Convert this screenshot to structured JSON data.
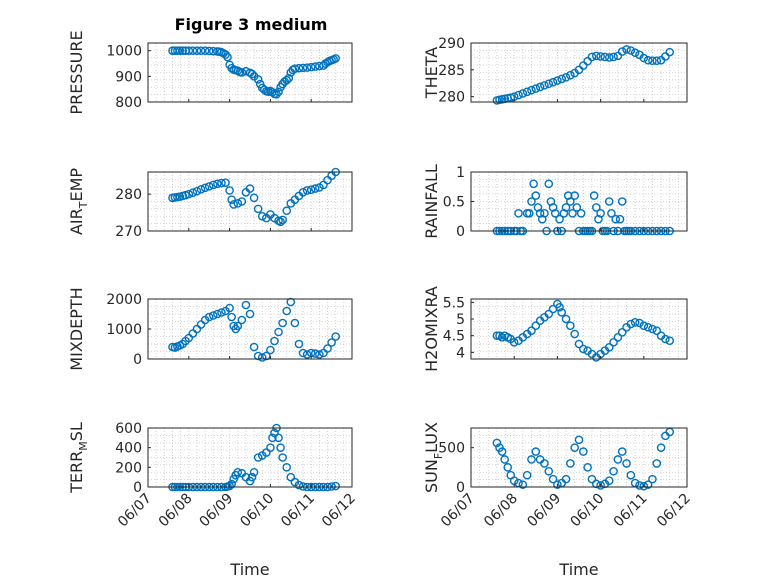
{
  "figure": {
    "title": "Figure 3 medium",
    "marker_color": "#0072BD"
  },
  "chart_data": [
    {
      "type": "scatter",
      "ylabel": "PRESSURE",
      "yticks": [
        "800",
        "900",
        "1000"
      ],
      "ylim": [
        800,
        1030
      ],
      "x_dates": [
        "06/07",
        "06/08",
        "06/09",
        "06/10",
        "06/11",
        "06/12"
      ],
      "series": [
        {
          "x": [
            0.6,
            0.66,
            0.72,
            0.78,
            0.85,
            0.92,
            1.0,
            1.1,
            1.2,
            1.3,
            1.4,
            1.5,
            1.6,
            1.7,
            1.75,
            1.8,
            1.85,
            1.9,
            1.95,
            2.0,
            2.05,
            2.1,
            2.15,
            2.2,
            2.25,
            2.3,
            2.4,
            2.5,
            2.55,
            2.6,
            2.7,
            2.75,
            2.8,
            2.85,
            2.9,
            2.95,
            3.0,
            3.05,
            3.1,
            3.15,
            3.2,
            3.25,
            3.3,
            3.35,
            3.4,
            3.45,
            3.5,
            3.55,
            3.6,
            3.7,
            3.8,
            3.9,
            4.0,
            4.1,
            4.2,
            4.3,
            4.35,
            4.4,
            4.45,
            4.5,
            4.55,
            4.6
          ],
          "y": [
            1000,
            1000,
            1000,
            1000,
            1000,
            1000,
            1000,
            1000,
            1000,
            1000,
            1000,
            999,
            998,
            997,
            996,
            994,
            990,
            985,
            975,
            945,
            932,
            926,
            924,
            922,
            917,
            915,
            920,
            914,
            909,
            900,
            888,
            870,
            855,
            848,
            842,
            840,
            843,
            838,
            832,
            830,
            840,
            858,
            870,
            880,
            885,
            893,
            915,
            925,
            930,
            932,
            933,
            934,
            936,
            938,
            940,
            942,
            950,
            955,
            960,
            963,
            966,
            970
          ]
        }
      ],
      "xlabel": ""
    },
    {
      "type": "scatter",
      "ylabel": "THETA",
      "yticks": [
        "280",
        "285",
        "290"
      ],
      "ylim": [
        279,
        290
      ],
      "x_dates": [
        "06/07",
        "06/08",
        "06/09",
        "06/10",
        "06/11",
        "06/12"
      ],
      "series": [
        {
          "x": [
            0.6,
            0.66,
            0.72,
            0.78,
            0.85,
            0.92,
            1.0,
            1.1,
            1.2,
            1.3,
            1.4,
            1.5,
            1.6,
            1.7,
            1.8,
            1.9,
            2.0,
            2.1,
            2.2,
            2.3,
            2.4,
            2.5,
            2.6,
            2.7,
            2.8,
            2.9,
            3.0,
            3.1,
            3.2,
            3.3,
            3.4,
            3.5,
            3.6,
            3.7,
            3.8,
            3.9,
            4.0,
            4.1,
            4.2,
            4.3,
            4.4,
            4.5,
            4.6
          ],
          "y": [
            279.3,
            279.4,
            279.5,
            279.6,
            279.7,
            279.8,
            280.0,
            280.3,
            280.6,
            280.9,
            281.2,
            281.5,
            281.8,
            282.1,
            282.4,
            282.7,
            283.0,
            283.3,
            283.6,
            284.0,
            284.4,
            285.0,
            285.8,
            286.6,
            287.4,
            287.6,
            287.5,
            287.4,
            287.3,
            287.4,
            287.6,
            288.4,
            288.8,
            288.6,
            288.2,
            287.8,
            287.2,
            286.8,
            286.7,
            286.7,
            286.8,
            287.5,
            288.3
          ]
        }
      ],
      "xlabel": ""
    },
    {
      "type": "scatter",
      "ylabel": "AIR_TEMP",
      "yticks": [
        "270",
        "280"
      ],
      "ylim": [
        270,
        286
      ],
      "x_dates": [
        "06/07",
        "06/08",
        "06/09",
        "06/10",
        "06/11",
        "06/12"
      ],
      "series": [
        {
          "x": [
            0.6,
            0.66,
            0.72,
            0.78,
            0.85,
            0.92,
            1.0,
            1.1,
            1.2,
            1.3,
            1.4,
            1.5,
            1.6,
            1.7,
            1.8,
            1.9,
            2.0,
            2.05,
            2.1,
            2.2,
            2.3,
            2.4,
            2.5,
            2.6,
            2.7,
            2.8,
            2.9,
            3.0,
            3.1,
            3.2,
            3.25,
            3.3,
            3.4,
            3.5,
            3.6,
            3.7,
            3.8,
            3.9,
            4.0,
            4.1,
            4.2,
            4.3,
            4.4,
            4.5,
            4.6
          ],
          "y": [
            279.0,
            279.1,
            279.2,
            279.3,
            279.5,
            279.7,
            280.0,
            280.4,
            280.8,
            281.3,
            281.7,
            282.1,
            282.5,
            282.8,
            283.0,
            283.1,
            281.0,
            278.5,
            277.2,
            277.5,
            278.0,
            280.5,
            281.5,
            279.0,
            276.0,
            274.0,
            273.5,
            274.5,
            273.5,
            272.8,
            272.5,
            273.0,
            275.5,
            277.5,
            278.5,
            279.5,
            280.5,
            281.0,
            281.2,
            281.5,
            281.8,
            282.5,
            283.8,
            285.0,
            286.0
          ]
        }
      ],
      "xlabel": ""
    },
    {
      "type": "scatter",
      "ylabel": "RAINFALL",
      "yticks": [
        "0",
        "0.5",
        "1"
      ],
      "ylim": [
        0,
        1
      ],
      "x_dates": [
        "06/07",
        "06/08",
        "06/09",
        "06/10",
        "06/11",
        "06/12"
      ],
      "series": [
        {
          "x": [
            0.6,
            0.66,
            0.72,
            0.78,
            0.85,
            0.92,
            1.0,
            1.05,
            1.1,
            1.15,
            1.2,
            1.3,
            1.35,
            1.4,
            1.45,
            1.5,
            1.55,
            1.6,
            1.65,
            1.7,
            1.75,
            1.8,
            1.85,
            1.9,
            1.95,
            2.0,
            2.05,
            2.1,
            2.15,
            2.2,
            2.25,
            2.3,
            2.35,
            2.4,
            2.45,
            2.5,
            2.55,
            2.6,
            2.65,
            2.7,
            2.75,
            2.8,
            2.85,
            2.9,
            2.95,
            3.0,
            3.05,
            3.1,
            3.15,
            3.2,
            3.25,
            3.3,
            3.35,
            3.4,
            3.45,
            3.5,
            3.55,
            3.6,
            3.65,
            3.7,
            3.8,
            3.9,
            4.0,
            4.1,
            4.2,
            4.3,
            4.4,
            4.5,
            4.6
          ],
          "y": [
            0,
            0,
            0,
            0,
            0,
            0,
            0,
            0,
            0.3,
            0,
            0,
            0.3,
            0.3,
            0.5,
            0.8,
            0.6,
            0.4,
            0.3,
            0.2,
            0.3,
            0,
            0.8,
            0.5,
            0.4,
            0.3,
            0,
            0.2,
            0,
            0.3,
            0.4,
            0.6,
            0.5,
            0.3,
            0.6,
            0.4,
            0,
            0.3,
            0,
            0,
            0,
            0,
            0,
            0.6,
            0.4,
            0.2,
            0.3,
            0,
            0,
            0,
            0.5,
            0.3,
            0,
            0.2,
            0,
            0.2,
            0.5,
            0,
            0,
            0,
            0,
            0,
            0,
            0,
            0,
            0,
            0,
            0,
            0,
            0
          ]
        }
      ],
      "xlabel": ""
    },
    {
      "type": "scatter",
      "ylabel": "MIXDEPTH",
      "yticks": [
        "0",
        "1000",
        "2000"
      ],
      "ylim": [
        0,
        2000
      ],
      "x_dates": [
        "06/07",
        "06/08",
        "06/09",
        "06/10",
        "06/11",
        "06/12"
      ],
      "series": [
        {
          "x": [
            0.6,
            0.66,
            0.72,
            0.78,
            0.85,
            0.92,
            1.0,
            1.1,
            1.2,
            1.3,
            1.4,
            1.5,
            1.6,
            1.7,
            1.8,
            1.9,
            2.0,
            2.05,
            2.1,
            2.15,
            2.2,
            2.3,
            2.4,
            2.5,
            2.6,
            2.7,
            2.8,
            2.9,
            3.0,
            3.1,
            3.2,
            3.3,
            3.4,
            3.5,
            3.6,
            3.7,
            3.8,
            3.9,
            4.0,
            4.1,
            4.2,
            4.3,
            4.4,
            4.5,
            4.6
          ],
          "y": [
            400,
            380,
            420,
            450,
            500,
            600,
            700,
            850,
            1000,
            1150,
            1300,
            1400,
            1450,
            1500,
            1550,
            1600,
            1700,
            1400,
            1100,
            1000,
            1100,
            1300,
            1800,
            1500,
            400,
            100,
            50,
            100,
            300,
            600,
            900,
            1200,
            1600,
            1900,
            1200,
            500,
            200,
            150,
            200,
            180,
            150,
            200,
            350,
            550,
            750
          ]
        }
      ],
      "xlabel": ""
    },
    {
      "type": "scatter",
      "ylabel": "H2OMIXRA",
      "yticks": [
        "4",
        "4.5",
        "5",
        "5.5"
      ],
      "ylim": [
        3.8,
        5.6
      ],
      "x_dates": [
        "06/07",
        "06/08",
        "06/09",
        "06/10",
        "06/11",
        "06/12"
      ],
      "series": [
        {
          "x": [
            0.6,
            0.66,
            0.72,
            0.78,
            0.85,
            0.92,
            1.0,
            1.1,
            1.2,
            1.3,
            1.4,
            1.5,
            1.6,
            1.7,
            1.8,
            1.9,
            2.0,
            2.05,
            2.1,
            2.2,
            2.3,
            2.4,
            2.5,
            2.6,
            2.7,
            2.8,
            2.9,
            3.0,
            3.1,
            3.2,
            3.3,
            3.4,
            3.5,
            3.6,
            3.7,
            3.8,
            3.9,
            4.0,
            4.1,
            4.2,
            4.3,
            4.4,
            4.5,
            4.6
          ],
          "y": [
            4.5,
            4.5,
            4.45,
            4.5,
            4.45,
            4.4,
            4.3,
            4.35,
            4.45,
            4.55,
            4.65,
            4.8,
            4.95,
            5.05,
            5.15,
            5.3,
            5.45,
            5.35,
            5.2,
            5.0,
            4.8,
            4.55,
            4.25,
            4.1,
            4.05,
            3.95,
            3.85,
            3.95,
            4.05,
            4.15,
            4.3,
            4.45,
            4.6,
            4.75,
            4.85,
            4.9,
            4.88,
            4.8,
            4.75,
            4.7,
            4.65,
            4.5,
            4.4,
            4.35
          ]
        }
      ],
      "xlabel": ""
    },
    {
      "type": "scatter",
      "ylabel": "TERR_MSL",
      "yticks": [
        "0",
        "200",
        "400",
        "600"
      ],
      "ylim": [
        0,
        600
      ],
      "x_dates": [
        "06/07",
        "06/08",
        "06/09",
        "06/10",
        "06/11",
        "06/12"
      ],
      "series": [
        {
          "x": [
            0.6,
            0.66,
            0.72,
            0.78,
            0.85,
            0.92,
            1.0,
            1.1,
            1.2,
            1.3,
            1.4,
            1.5,
            1.6,
            1.7,
            1.8,
            1.9,
            1.95,
            2.0,
            2.05,
            2.1,
            2.15,
            2.2,
            2.3,
            2.4,
            2.5,
            2.55,
            2.6,
            2.7,
            2.8,
            2.9,
            3.0,
            3.05,
            3.1,
            3.15,
            3.2,
            3.25,
            3.3,
            3.4,
            3.5,
            3.6,
            3.7,
            3.8,
            3.9,
            4.0,
            4.1,
            4.2,
            4.3,
            4.4,
            4.5,
            4.6
          ],
          "y": [
            0,
            0,
            0,
            0,
            0,
            0,
            0,
            0,
            0,
            0,
            0,
            0,
            0,
            0,
            0,
            0,
            5,
            10,
            30,
            80,
            120,
            150,
            140,
            100,
            60,
            100,
            150,
            300,
            320,
            350,
            400,
            500,
            550,
            600,
            500,
            400,
            300,
            200,
            100,
            50,
            20,
            5,
            0,
            0,
            0,
            0,
            0,
            0,
            5,
            10
          ]
        }
      ],
      "xlabel": "Time"
    },
    {
      "type": "scatter",
      "ylabel": "SUN_FLUX",
      "yticks": [
        "0",
        "500"
      ],
      "ylim": [
        0,
        750
      ],
      "x_dates": [
        "06/07",
        "06/08",
        "06/09",
        "06/10",
        "06/11",
        "06/12"
      ],
      "series": [
        {
          "x": [
            0.6,
            0.66,
            0.72,
            0.78,
            0.85,
            0.92,
            1.0,
            1.1,
            1.2,
            1.3,
            1.4,
            1.5,
            1.6,
            1.7,
            1.8,
            1.9,
            2.0,
            2.1,
            2.2,
            2.3,
            2.4,
            2.5,
            2.6,
            2.7,
            2.8,
            2.9,
            3.0,
            3.1,
            3.2,
            3.3,
            3.4,
            3.5,
            3.6,
            3.7,
            3.8,
            3.9,
            4.0,
            4.1,
            4.2,
            4.3,
            4.4,
            4.5,
            4.6
          ],
          "y": [
            560,
            500,
            450,
            350,
            250,
            150,
            80,
            50,
            30,
            150,
            350,
            450,
            350,
            300,
            200,
            100,
            30,
            50,
            100,
            300,
            500,
            600,
            450,
            250,
            100,
            40,
            20,
            40,
            80,
            200,
            350,
            450,
            300,
            150,
            50,
            20,
            10,
            30,
            100,
            300,
            500,
            650,
            700
          ]
        }
      ],
      "xlabel": "Time"
    }
  ]
}
